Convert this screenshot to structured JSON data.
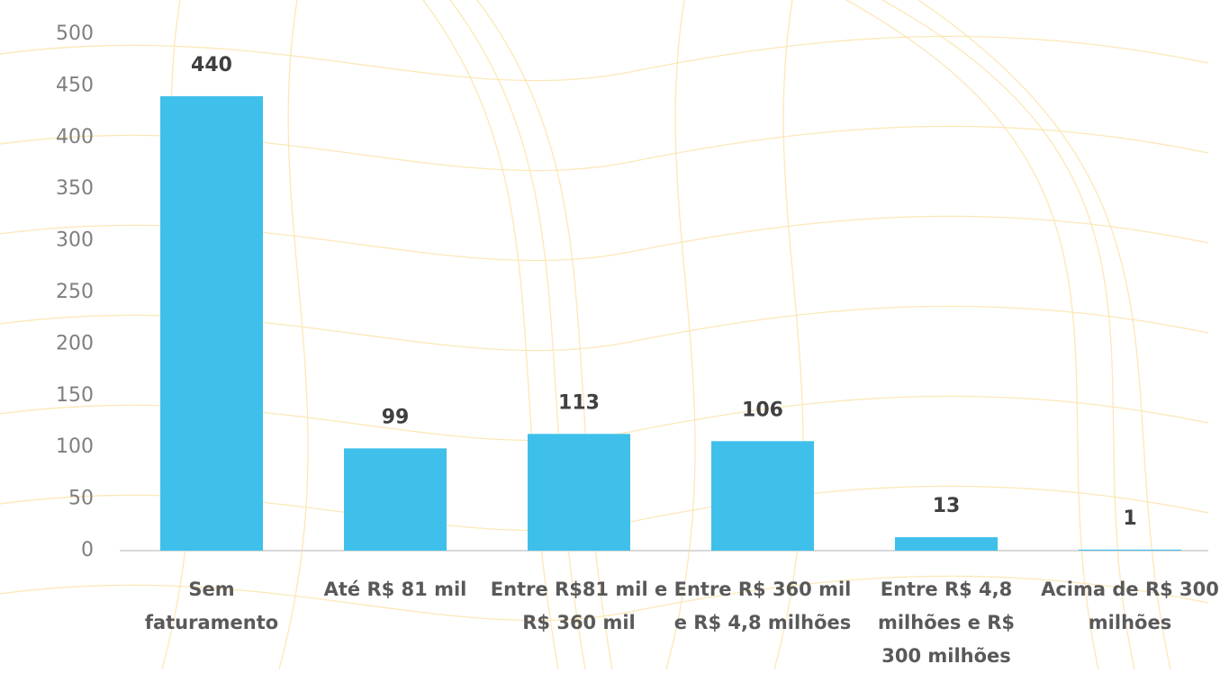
{
  "chart_data": {
    "type": "bar",
    "categories": [
      "Sem faturamento",
      "Até R$ 81 mil",
      "Entre R$81 mil e R$ 360 mil",
      "Entre R$ 360 mil e R$ 4,8 milhões",
      "Entre R$ 4,8 milhões e R$ 300 milhões",
      "Acima de R$ 300 milhões"
    ],
    "values": [
      440,
      99,
      113,
      106,
      13,
      1
    ],
    "color": "#3ec0ea",
    "ylim": [
      0,
      500
    ],
    "yticks": [
      0,
      50,
      100,
      150,
      200,
      250,
      300,
      350,
      400,
      450,
      500
    ],
    "grid": false
  }
}
